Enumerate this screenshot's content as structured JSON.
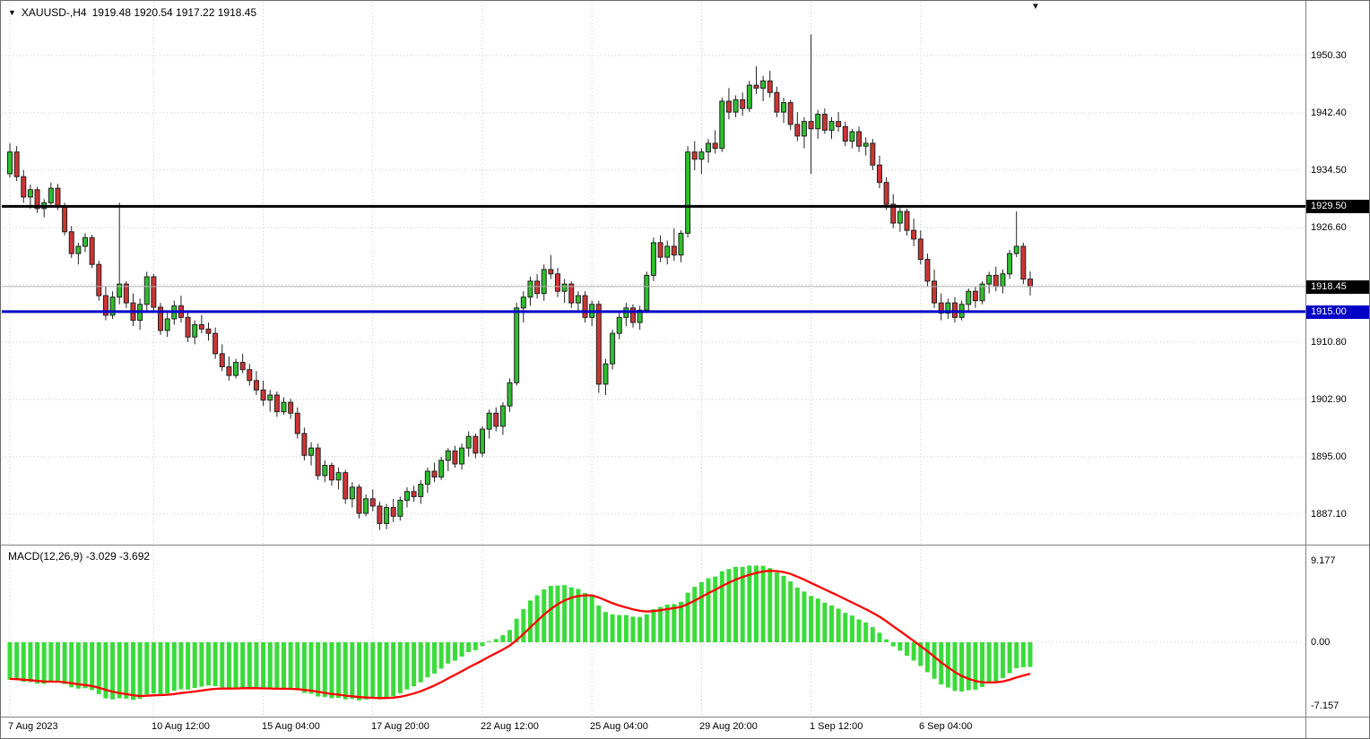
{
  "header": {
    "symbol_marker": "▼",
    "symbol": "XAUUSD-,H4",
    "ohlc_readout": "1919.48 1920.54 1917.22 1918.45"
  },
  "shift_marker": "▼",
  "colors": {
    "bull": "#2FBE2F",
    "bear": "#CE3434",
    "outline": "#222222",
    "macd_hist": "#3ADB3A",
    "macd_signal": "#FF0000",
    "hline_black": "#000000",
    "hline_blue": "#0000C8",
    "grid": "#C8C8C8",
    "bid_line": "#B0B0B0",
    "axis_text": "#000000",
    "badge_text": "#FFFFFF",
    "separator": "#808080"
  },
  "chart_data": {
    "type": "candlestick",
    "title": "XAUUSD- H4 candlestick chart with MACD(12,26,9)",
    "symbol": "XAUUSD-",
    "timeframe": "H4",
    "last_ohlc": {
      "open": 1919.48,
      "high": 1920.54,
      "low": 1917.22,
      "close": 1918.45
    },
    "price_axis": {
      "grid_labels": [
        "1950.30",
        "1942.40",
        "1934.50",
        "1926.60",
        "1910.80",
        "1902.90",
        "1895.00",
        "1887.10"
      ],
      "grid_values": [
        1950.3,
        1942.4,
        1934.5,
        1926.6,
        1910.8,
        1902.9,
        1895.0,
        1887.1
      ],
      "grid_extra": [
        1918.7
      ]
    },
    "time_axis": {
      "ticks": [
        {
          "label": "7 Aug 2023",
          "index": 0
        },
        {
          "label": "10 Aug 12:00",
          "index": 21
        },
        {
          "label": "15 Aug 04:00",
          "index": 37
        },
        {
          "label": "17 Aug 20:00",
          "index": 53
        },
        {
          "label": "22 Aug 12:00",
          "index": 69
        },
        {
          "label": "25 Aug 04:00",
          "index": 85
        },
        {
          "label": "29 Aug 20:00",
          "index": 101
        },
        {
          "label": "1 Sep 12:00",
          "index": 117
        },
        {
          "label": "6 Sep 04:00",
          "index": 133
        }
      ]
    },
    "hlines": [
      {
        "price": 1929.5,
        "label": "1929.50",
        "color_key": "hline_black",
        "width": 3
      },
      {
        "price": 1915.0,
        "label": "1915.00",
        "color_key": "hline_blue",
        "width": 3
      }
    ],
    "bid": {
      "price": 1918.45,
      "label": "1918.45"
    },
    "candles": [
      [
        1934.0,
        1938.2,
        1933.5,
        1937.0
      ],
      [
        1937.0,
        1937.8,
        1933.0,
        1933.6
      ],
      [
        1933.6,
        1934.5,
        1930.0,
        1930.8
      ],
      [
        1930.8,
        1932.5,
        1929.2,
        1931.8
      ],
      [
        1931.8,
        1932.2,
        1928.6,
        1929.2
      ],
      [
        1929.2,
        1930.5,
        1928.0,
        1930.0
      ],
      [
        1930.0,
        1932.8,
        1929.5,
        1932.0
      ],
      [
        1932.0,
        1932.6,
        1929.0,
        1929.6
      ],
      [
        1929.6,
        1930.0,
        1925.5,
        1926.0
      ],
      [
        1926.0,
        1926.8,
        1922.4,
        1923.0
      ],
      [
        1923.0,
        1924.5,
        1921.5,
        1924.0
      ],
      [
        1924.0,
        1925.8,
        1923.2,
        1925.2
      ],
      [
        1925.2,
        1925.6,
        1921.0,
        1921.5
      ],
      [
        1921.5,
        1922.0,
        1916.5,
        1917.2
      ],
      [
        1917.2,
        1918.5,
        1913.8,
        1914.5
      ],
      [
        1914.5,
        1917.8,
        1914.0,
        1917.0
      ],
      [
        1917.0,
        1930.0,
        1916.0,
        1918.8
      ],
      [
        1918.8,
        1919.2,
        1915.5,
        1916.2
      ],
      [
        1916.2,
        1917.5,
        1913.0,
        1913.8
      ],
      [
        1913.8,
        1916.8,
        1912.5,
        1916.0
      ],
      [
        1916.0,
        1920.5,
        1915.0,
        1919.8
      ],
      [
        1919.8,
        1920.2,
        1915.0,
        1915.6
      ],
      [
        1915.6,
        1916.2,
        1911.8,
        1912.4
      ],
      [
        1912.4,
        1914.8,
        1911.5,
        1914.0
      ],
      [
        1914.0,
        1916.5,
        1913.2,
        1915.8
      ],
      [
        1915.8,
        1917.2,
        1913.5,
        1914.2
      ],
      [
        1914.2,
        1915.0,
        1910.8,
        1911.5
      ],
      [
        1911.5,
        1913.8,
        1910.5,
        1913.2
      ],
      [
        1913.2,
        1914.5,
        1912.0,
        1912.6
      ],
      [
        1912.6,
        1913.5,
        1911.0,
        1912.0
      ],
      [
        1912.0,
        1912.8,
        1908.5,
        1909.2
      ],
      [
        1909.2,
        1910.5,
        1906.8,
        1907.4
      ],
      [
        1907.4,
        1908.8,
        1905.5,
        1906.2
      ],
      [
        1906.2,
        1908.5,
        1905.8,
        1908.0
      ],
      [
        1908.0,
        1909.2,
        1906.5,
        1907.0
      ],
      [
        1907.0,
        1907.8,
        1904.8,
        1905.5
      ],
      [
        1905.5,
        1906.8,
        1903.5,
        1904.2
      ],
      [
        1904.2,
        1905.5,
        1902.0,
        1902.8
      ],
      [
        1902.8,
        1904.2,
        1901.2,
        1903.5
      ],
      [
        1903.5,
        1904.0,
        1900.5,
        1901.2
      ],
      [
        1901.2,
        1903.2,
        1900.8,
        1902.5
      ],
      [
        1902.5,
        1903.0,
        1900.2,
        1901.0
      ],
      [
        1901.0,
        1901.8,
        1897.5,
        1898.2
      ],
      [
        1898.2,
        1899.0,
        1894.5,
        1895.2
      ],
      [
        1895.2,
        1897.0,
        1893.8,
        1896.2
      ],
      [
        1896.2,
        1896.8,
        1891.8,
        1892.4
      ],
      [
        1892.4,
        1894.5,
        1891.5,
        1893.8
      ],
      [
        1893.8,
        1894.2,
        1891.0,
        1891.8
      ],
      [
        1891.8,
        1893.5,
        1890.5,
        1892.8
      ],
      [
        1892.8,
        1893.2,
        1888.5,
        1889.2
      ],
      [
        1889.2,
        1891.5,
        1888.0,
        1890.8
      ],
      [
        1890.8,
        1891.2,
        1886.5,
        1887.2
      ],
      [
        1887.2,
        1889.8,
        1886.8,
        1889.2
      ],
      [
        1889.2,
        1890.5,
        1887.5,
        1888.2
      ],
      [
        1888.2,
        1888.8,
        1884.9,
        1885.8
      ],
      [
        1885.8,
        1888.5,
        1885.0,
        1888.0
      ],
      [
        1888.0,
        1889.2,
        1886.0,
        1886.8
      ],
      [
        1886.8,
        1889.5,
        1886.2,
        1889.0
      ],
      [
        1889.0,
        1890.8,
        1888.0,
        1890.2
      ],
      [
        1890.2,
        1891.0,
        1888.8,
        1889.5
      ],
      [
        1889.5,
        1891.8,
        1888.5,
        1891.2
      ],
      [
        1891.2,
        1893.5,
        1890.0,
        1893.0
      ],
      [
        1893.0,
        1894.2,
        1891.5,
        1892.2
      ],
      [
        1892.2,
        1895.0,
        1891.8,
        1894.5
      ],
      [
        1894.5,
        1896.2,
        1893.0,
        1895.8
      ],
      [
        1895.8,
        1896.5,
        1893.5,
        1894.0
      ],
      [
        1894.0,
        1896.8,
        1893.2,
        1896.2
      ],
      [
        1896.2,
        1898.5,
        1895.0,
        1897.8
      ],
      [
        1897.8,
        1898.2,
        1894.8,
        1895.5
      ],
      [
        1895.5,
        1899.2,
        1895.0,
        1898.8
      ],
      [
        1898.8,
        1901.5,
        1897.5,
        1901.0
      ],
      [
        1901.0,
        1901.8,
        1898.5,
        1899.2
      ],
      [
        1899.2,
        1902.5,
        1898.0,
        1902.0
      ],
      [
        1902.0,
        1905.8,
        1901.2,
        1905.2
      ],
      [
        1905.2,
        1916.2,
        1904.8,
        1915.5
      ],
      [
        1915.5,
        1917.8,
        1913.5,
        1917.0
      ],
      [
        1917.0,
        1919.8,
        1915.8,
        1919.2
      ],
      [
        1919.2,
        1920.2,
        1916.8,
        1917.5
      ],
      [
        1917.5,
        1921.5,
        1916.5,
        1920.8
      ],
      [
        1920.8,
        1922.8,
        1919.5,
        1920.2
      ],
      [
        1920.2,
        1921.0,
        1917.0,
        1917.8
      ],
      [
        1917.8,
        1919.5,
        1916.2,
        1918.8
      ],
      [
        1918.8,
        1919.2,
        1915.5,
        1916.2
      ],
      [
        1916.2,
        1917.8,
        1914.8,
        1917.2
      ],
      [
        1917.2,
        1917.8,
        1913.5,
        1914.2
      ],
      [
        1914.2,
        1916.5,
        1913.0,
        1916.0
      ],
      [
        1916.0,
        1916.5,
        1903.8,
        1905.0
      ],
      [
        1905.0,
        1908.5,
        1903.5,
        1907.8
      ],
      [
        1907.8,
        1912.5,
        1907.0,
        1912.0
      ],
      [
        1912.0,
        1914.8,
        1911.2,
        1914.2
      ],
      [
        1914.2,
        1916.2,
        1913.0,
        1915.5
      ],
      [
        1915.5,
        1916.0,
        1912.8,
        1913.5
      ],
      [
        1913.5,
        1915.8,
        1912.5,
        1915.2
      ],
      [
        1915.2,
        1920.5,
        1914.8,
        1920.0
      ],
      [
        1920.0,
        1925.2,
        1919.2,
        1924.5
      ],
      [
        1924.5,
        1925.5,
        1921.8,
        1922.5
      ],
      [
        1922.5,
        1924.8,
        1921.5,
        1924.0
      ],
      [
        1924.0,
        1926.5,
        1922.0,
        1922.8
      ],
      [
        1922.8,
        1926.2,
        1921.8,
        1925.8
      ],
      [
        1925.8,
        1937.8,
        1925.2,
        1937.0
      ],
      [
        1937.0,
        1938.5,
        1934.5,
        1936.0
      ],
      [
        1936.0,
        1937.5,
        1934.0,
        1937.0
      ],
      [
        1937.0,
        1938.8,
        1935.5,
        1938.2
      ],
      [
        1938.2,
        1940.0,
        1936.8,
        1937.5
      ],
      [
        1937.5,
        1944.5,
        1937.0,
        1944.0
      ],
      [
        1944.0,
        1945.8,
        1941.5,
        1942.5
      ],
      [
        1942.5,
        1944.8,
        1941.8,
        1944.2
      ],
      [
        1944.2,
        1945.2,
        1942.0,
        1943.0
      ],
      [
        1943.0,
        1946.8,
        1942.5,
        1946.2
      ],
      [
        1946.2,
        1948.8,
        1945.0,
        1945.8
      ],
      [
        1945.8,
        1947.5,
        1944.0,
        1946.8
      ],
      [
        1946.8,
        1948.2,
        1944.5,
        1945.2
      ],
      [
        1945.2,
        1946.0,
        1941.8,
        1942.5
      ],
      [
        1942.5,
        1944.5,
        1941.0,
        1943.8
      ],
      [
        1943.8,
        1944.2,
        1940.0,
        1940.8
      ],
      [
        1940.8,
        1942.5,
        1938.5,
        1939.2
      ],
      [
        1939.2,
        1941.8,
        1937.5,
        1941.2
      ],
      [
        1941.2,
        1953.2,
        1934.0,
        1940.2
      ],
      [
        1940.2,
        1942.8,
        1938.8,
        1942.2
      ],
      [
        1942.2,
        1943.0,
        1939.5,
        1940.0
      ],
      [
        1940.0,
        1941.8,
        1938.8,
        1941.2
      ],
      [
        1941.2,
        1942.5,
        1939.8,
        1940.5
      ],
      [
        1940.5,
        1941.2,
        1937.8,
        1938.5
      ],
      [
        1938.5,
        1940.2,
        1937.5,
        1939.8
      ],
      [
        1939.8,
        1940.5,
        1937.0,
        1937.8
      ],
      [
        1937.8,
        1939.0,
        1936.5,
        1938.2
      ],
      [
        1938.2,
        1938.8,
        1934.5,
        1935.2
      ],
      [
        1935.2,
        1936.5,
        1932.0,
        1932.8
      ],
      [
        1932.8,
        1933.5,
        1929.0,
        1929.8
      ],
      [
        1929.8,
        1931.2,
        1926.5,
        1927.2
      ],
      [
        1927.2,
        1929.5,
        1926.0,
        1928.8
      ],
      [
        1928.8,
        1929.2,
        1925.5,
        1926.2
      ],
      [
        1926.2,
        1927.8,
        1924.0,
        1925.0
      ],
      [
        1925.0,
        1926.2,
        1921.5,
        1922.2
      ],
      [
        1922.2,
        1923.0,
        1918.5,
        1919.2
      ],
      [
        1919.2,
        1920.8,
        1915.5,
        1916.2
      ],
      [
        1916.2,
        1917.5,
        1913.8,
        1914.8
      ],
      [
        1914.8,
        1916.8,
        1914.0,
        1916.2
      ],
      [
        1916.2,
        1917.0,
        1913.5,
        1914.2
      ],
      [
        1914.2,
        1916.5,
        1913.8,
        1916.0
      ],
      [
        1916.0,
        1918.2,
        1915.0,
        1917.8
      ],
      [
        1917.8,
        1918.5,
        1915.5,
        1916.5
      ],
      [
        1916.5,
        1919.2,
        1916.0,
        1918.8
      ],
      [
        1918.8,
        1920.5,
        1917.5,
        1920.0
      ],
      [
        1920.0,
        1921.2,
        1917.8,
        1918.5
      ],
      [
        1918.5,
        1920.8,
        1917.5,
        1920.2
      ],
      [
        1920.2,
        1923.5,
        1919.5,
        1923.0
      ],
      [
        1923.0,
        1928.8,
        1922.5,
        1924.0
      ],
      [
        1924.0,
        1924.5,
        1918.8,
        1919.48
      ],
      [
        1919.48,
        1920.54,
        1917.22,
        1918.45
      ]
    ],
    "macd": {
      "title": "MACD(12,26,9) -3.029 -3.692",
      "fast": 12,
      "slow": 26,
      "signal": 9,
      "main_value": -3.029,
      "signal_value": -3.692,
      "derived": "histogram = EMA12(close)-EMA26(close); red line = EMA9 of histogram",
      "axis": {
        "max_label": "9.177",
        "zero_label": "0.00",
        "min_label": "-7.157",
        "max": 9.177,
        "min": -7.157
      }
    }
  }
}
